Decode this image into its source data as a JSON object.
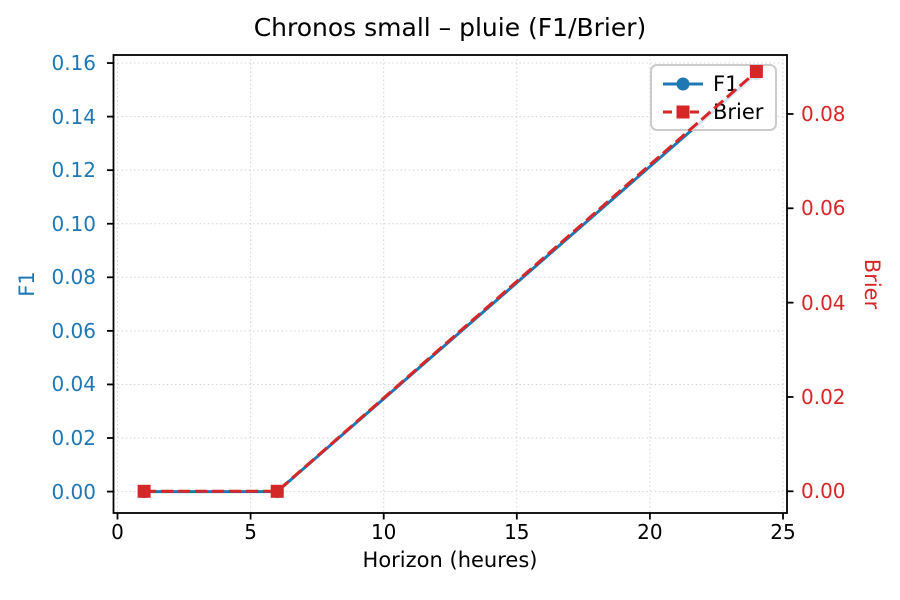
{
  "chart_data": {
    "type": "line",
    "title": "Chronos small – pluie (F1/Brier)",
    "xlabel": "Horizon (heures)",
    "ylabel_left": "F1",
    "ylabel_right": "Brier",
    "x": [
      1,
      6,
      24
    ],
    "series": [
      {
        "name": "F1",
        "axis": "left",
        "color": "#1f77b4",
        "linestyle": "solid",
        "marker": "circle",
        "values": [
          0.0,
          0.0,
          0.156
        ]
      },
      {
        "name": "Brier",
        "axis": "right",
        "color": "#d62728",
        "linestyle": "dashed",
        "marker": "square",
        "values": [
          0.0,
          0.0,
          0.089
        ]
      }
    ],
    "x_ticks": [
      0,
      5,
      10,
      15,
      20,
      25
    ],
    "x_tick_labels": [
      "0",
      "5",
      "10",
      "15",
      "20",
      "25"
    ],
    "left_ticks": [
      0.0,
      0.02,
      0.04,
      0.06,
      0.08,
      0.1,
      0.12,
      0.14,
      0.16
    ],
    "left_tick_labels": [
      "0.00",
      "0.02",
      "0.04",
      "0.06",
      "0.08",
      "0.10",
      "0.12",
      "0.14",
      "0.16"
    ],
    "right_ticks": [
      0.0,
      0.02,
      0.04,
      0.06,
      0.08
    ],
    "right_tick_labels": [
      "0.00",
      "0.02",
      "0.04",
      "0.06",
      "0.08"
    ],
    "xlim": [
      -0.15,
      25.15
    ],
    "ylim_left": [
      -0.008,
      0.163
    ],
    "ylim_right": [
      -0.0046,
      0.0925
    ],
    "grid": true,
    "grid_color": "#d4d4d4",
    "spine_color": "#000000",
    "legend": {
      "position": "upper right",
      "entries": [
        "F1",
        "Brier"
      ]
    },
    "axis_colors": {
      "left": "#1f77b4",
      "right": "#d62728",
      "x": "#000000"
    }
  }
}
